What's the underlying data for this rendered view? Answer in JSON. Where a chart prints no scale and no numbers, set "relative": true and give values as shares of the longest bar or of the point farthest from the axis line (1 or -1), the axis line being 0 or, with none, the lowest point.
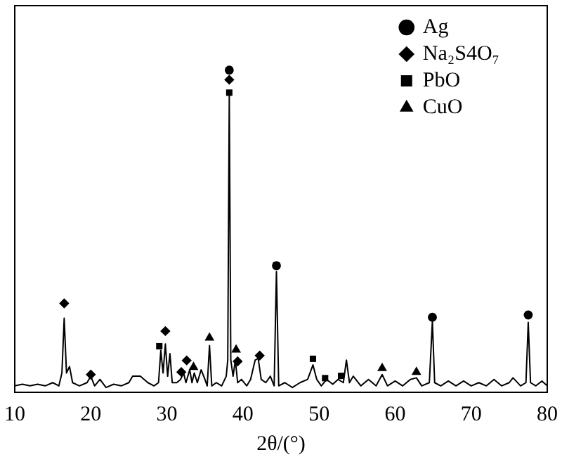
{
  "chart_data": {
    "type": "line",
    "relative": true,
    "xlabel": "2θ/(°)",
    "xlim": [
      10,
      80
    ],
    "xticks": [
      10,
      20,
      30,
      40,
      50,
      60,
      70,
      80
    ],
    "legend": "top right",
    "grid": false,
    "line_style": "solid",
    "series": [
      {
        "color": "#000000",
        "marker": "none",
        "x": [
          10,
          11,
          12,
          13,
          14,
          15,
          15.8,
          16.2,
          16.5,
          16.8,
          17.2,
          17.6,
          18.5,
          19.5,
          20,
          20.5,
          21.2,
          22,
          23,
          24,
          25,
          25.5,
          26.5,
          27.5,
          28.3,
          28.9,
          29.2,
          29.5,
          29.8,
          30.1,
          30.4,
          30.7,
          31.3,
          31.8,
          32.2,
          32.5,
          33,
          33.3,
          33.6,
          34,
          34.5,
          35,
          35.3,
          35.6,
          35.9,
          36.5,
          37.2,
          37.8,
          38,
          38.2,
          38.4,
          38.7,
          39,
          39.3,
          39.8,
          40.5,
          41,
          41.6,
          42,
          42.4,
          43,
          43.6,
          44.1,
          44.4,
          44.7,
          45.5,
          46.5,
          47.5,
          48.5,
          49.2,
          49.7,
          50.3,
          51,
          51.8,
          52.5,
          53.2,
          53.6,
          54,
          54.5,
          55.5,
          56.5,
          57.5,
          58.3,
          59,
          60,
          61,
          62,
          62.8,
          63.5,
          64.5,
          64.9,
          65.2,
          66,
          67,
          68,
          69,
          70,
          71,
          72,
          73,
          74,
          75,
          75.5,
          76.5,
          77.2,
          77.5,
          77.8,
          78.5,
          79.3,
          80
        ],
        "values": [
          0.02,
          0.025,
          0.02,
          0.025,
          0.02,
          0.03,
          0.02,
          0.06,
          0.23,
          0.06,
          0.08,
          0.03,
          0.02,
          0.03,
          0.05,
          0.02,
          0.04,
          0.015,
          0.025,
          0.02,
          0.03,
          0.05,
          0.05,
          0.03,
          0.02,
          0.03,
          0.13,
          0.06,
          0.15,
          0.05,
          0.12,
          0.03,
          0.03,
          0.04,
          0.06,
          0.03,
          0.07,
          0.03,
          0.06,
          0.03,
          0.07,
          0.04,
          0.02,
          0.145,
          0.02,
          0.03,
          0.02,
          0.05,
          0.1,
          0.92,
          0.1,
          0.05,
          0.1,
          0.03,
          0.04,
          0.02,
          0.04,
          0.1,
          0.105,
          0.04,
          0.03,
          0.05,
          0.02,
          0.375,
          0.02,
          0.03,
          0.015,
          0.03,
          0.04,
          0.085,
          0.04,
          0.02,
          0.04,
          0.025,
          0.04,
          0.03,
          0.1,
          0.03,
          0.05,
          0.02,
          0.04,
          0.02,
          0.055,
          0.02,
          0.035,
          0.02,
          0.04,
          0.045,
          0.02,
          0.03,
          0.22,
          0.03,
          0.02,
          0.035,
          0.02,
          0.035,
          0.02,
          0.03,
          0.02,
          0.04,
          0.02,
          0.03,
          0.045,
          0.02,
          0.03,
          0.217,
          0.03,
          0.02,
          0.035,
          0.02
        ]
      },
      {
        "type": "scatter",
        "name": "Ag",
        "color": "#000000",
        "marker": "circle",
        "x": [
          38.2,
          44.4,
          64.9,
          77.5
        ],
        "values": [
          1.0,
          0.393,
          0.233,
          0.24
        ]
      },
      {
        "type": "scatter",
        "name": "Na₂S4O₇",
        "color": "#000000",
        "marker": "diamond",
        "x": [
          16.5,
          20,
          29.8,
          31.9,
          32.6,
          38.2,
          39.3,
          42.2
        ],
        "values": [
          0.276,
          0.055,
          0.19,
          0.063,
          0.099,
          0.97,
          0.096,
          0.114
        ]
      },
      {
        "type": "scatter",
        "name": "PbO",
        "color": "#000000",
        "marker": "square",
        "x": [
          29,
          38.2,
          49.2,
          50.8,
          52.9
        ],
        "values": [
          0.143,
          0.93,
          0.104,
          0.044,
          0.051
        ]
      },
      {
        "type": "scatter",
        "name": "CuO",
        "color": "#000000",
        "marker": "triangle",
        "x": [
          33.5,
          35.6,
          39.1,
          58.3,
          62.8
        ],
        "values": [
          0.078,
          0.169,
          0.132,
          0.075,
          0.063
        ]
      }
    ]
  }
}
